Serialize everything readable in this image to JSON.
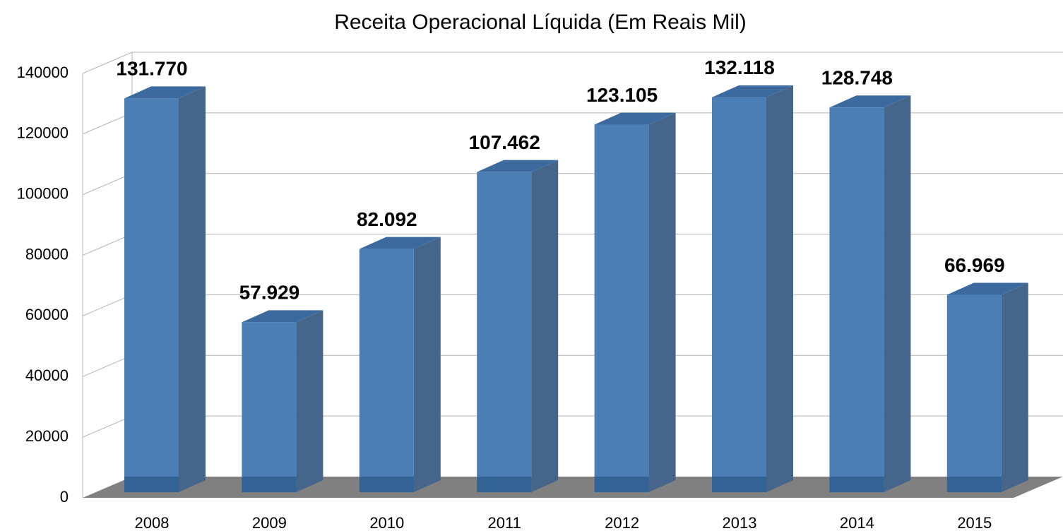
{
  "chart_data": {
    "type": "bar",
    "title": "Receita Operacional Líquida (Em Reais Mil)",
    "categories": [
      "2008",
      "2009",
      "2010",
      "2011",
      "2012",
      "2013",
      "2014",
      "2015"
    ],
    "values": [
      131770,
      57929,
      82092,
      107462,
      123105,
      132118,
      128748,
      66969
    ],
    "value_labels": [
      "131.770",
      "57.929",
      "82.092",
      "107.462",
      "123.105",
      "132.118",
      "128.748",
      "66.969"
    ],
    "color": "#4a7eb5",
    "ylim": [
      0,
      140000
    ],
    "yticks": [
      0,
      20000,
      40000,
      60000,
      80000,
      100000,
      120000,
      140000
    ],
    "grid": true
  }
}
